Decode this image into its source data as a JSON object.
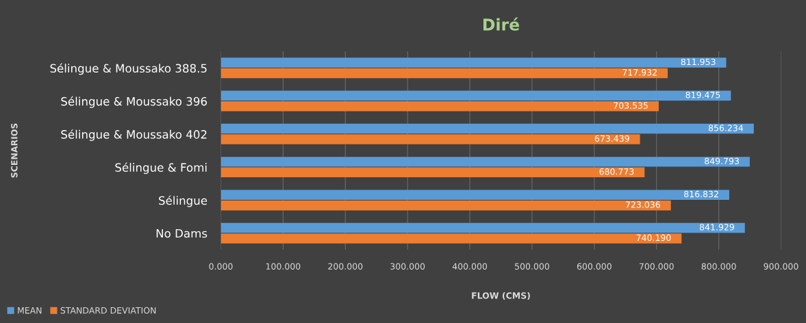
{
  "chart_data": {
    "type": "bar",
    "orientation": "horizontal",
    "title": "Diré",
    "xlabel": "FLOW (CMS)",
    "ylabel": "SCENARIOS",
    "categories": [
      "Sélingue & Moussako 388.5",
      "Sélingue & Moussako 396",
      "Sélingue & Moussako 402",
      "Sélingue & Fomi",
      "Sélingue",
      "No Dams"
    ],
    "series": [
      {
        "name": "MEAN",
        "color": "#5b9bd5",
        "values": [
          811.953,
          819.475,
          856.234,
          849.793,
          816.832,
          841.929
        ],
        "value_labels": [
          "811.953",
          "819.475",
          "856.234",
          "849.793",
          "816.832",
          "841.929"
        ]
      },
      {
        "name": "STANDARD DEVIATION",
        "color": "#ed7d31",
        "values": [
          717.932,
          703.535,
          673.439,
          680.773,
          723.036,
          740.19
        ],
        "value_labels": [
          "717.932",
          "703.535",
          "673.439",
          "680.773",
          "723.036",
          "740.190"
        ]
      }
    ],
    "xlim": [
      0,
      900
    ],
    "xticks": [
      {
        "value": 0,
        "label": "0.000"
      },
      {
        "value": 100,
        "label": "100.000"
      },
      {
        "value": 200,
        "label": "200.000"
      },
      {
        "value": 300,
        "label": "300.000"
      },
      {
        "value": 400,
        "label": "400.000"
      },
      {
        "value": 500,
        "label": "500.000"
      },
      {
        "value": 600,
        "label": "600.000"
      },
      {
        "value": 700,
        "label": "700.000"
      },
      {
        "value": 800,
        "label": "800.000"
      },
      {
        "value": 900,
        "label": "900.000"
      }
    ],
    "grid": "x",
    "legend": "bottom left"
  }
}
